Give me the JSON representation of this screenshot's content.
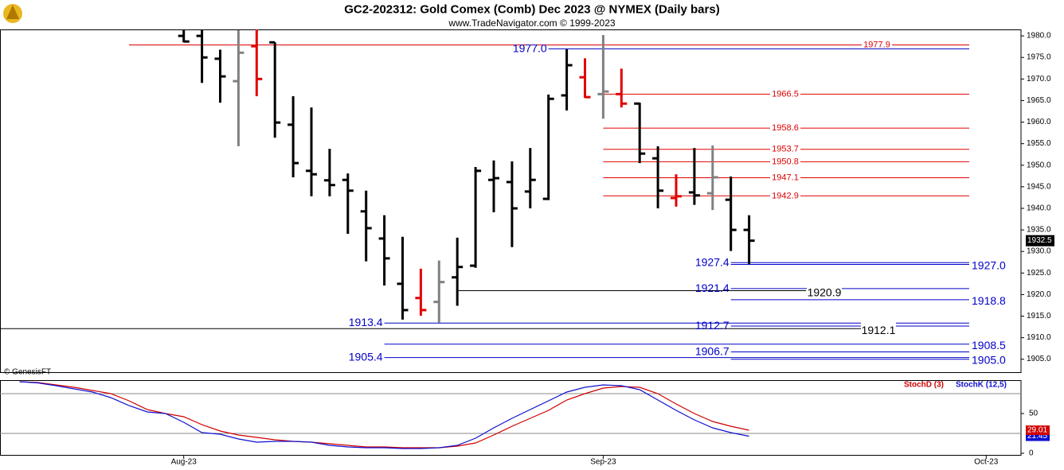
{
  "chart_data": [
    {
      "type": "ohlc",
      "title": "GC2-202312:  Gold Comex (Comb) Dec 2023 @ NYMEX  (Daily bars)",
      "subtitle": "www.TradeNavigator.com © 1999-2023",
      "watermark": "© GenesisFT",
      "open": [
        null,
        null,
        null,
        null,
        null,
        null,
        null,
        null,
        null,
        1980,
        1980,
        1974.7,
        1969.5,
        1977.6,
        1978.5,
        1959.4,
        1948.7,
        1946.5,
        1946.6,
        1939.3,
        1933.0,
        1922.5,
        1919.2,
        1918.3,
        1924.0,
        1926.7,
        1946.6,
        1946.1,
        1943.9,
        1942.2,
        1966.2,
        1970.4,
        1966.5,
        1966.5,
        1964.3,
        1951.6,
        1942.4,
        1943.7,
        1943.5,
        1942.0,
        1935.0,
        null,
        null,
        null,
        null,
        null,
        null,
        null,
        null,
        null,
        null,
        null,
        null,
        null,
        null
      ],
      "high": [
        null,
        null,
        null,
        null,
        null,
        null,
        null,
        null,
        null,
        1983,
        1983,
        1976.8,
        1981.3,
        1982,
        1978.5,
        1966.0,
        1963.4,
        1953.8,
        1948.1,
        1944.1,
        1938.4,
        1933.4,
        1926.0,
        1927.9,
        1933.2,
        1949.6,
        1951.1,
        1950.9,
        1954.0,
        1966.4,
        1976.9,
        1974.8,
        1980.2,
        1972.4,
        1964.5,
        1954.4,
        1947.9,
        1954.0,
        1954.6,
        1947.4,
        1938.4,
        null,
        null,
        null,
        null,
        null,
        null,
        null,
        null,
        null,
        null,
        null,
        null,
        null,
        null
      ],
      "low": [
        null,
        null,
        null,
        null,
        null,
        null,
        null,
        null,
        null,
        1978.5,
        1969.1,
        1964.5,
        1954.4,
        1966.0,
        1956.4,
        1947.2,
        1942.8,
        1942.8,
        1934.1,
        1927.7,
        1922.1,
        1914.2,
        1915.1,
        1913.5,
        1917.4,
        1926.2,
        1939.1,
        1931.0,
        1940.0,
        1941.9,
        1962.7,
        1965.6,
        1960.8,
        1963.4,
        1950.5,
        1940.0,
        1940.4,
        1940.8,
        1939.6,
        1930.1,
        1927.1,
        null,
        null,
        null,
        null,
        null,
        null,
        null,
        null,
        null,
        null,
        null,
        null,
        null,
        null
      ],
      "close": [
        null,
        null,
        null,
        null,
        null,
        null,
        null,
        null,
        null,
        1978.7,
        1975.0,
        1970.6,
        1976.1,
        1970.0,
        1959.9,
        1950.5,
        1947.9,
        1945.4,
        1944.1,
        1935.4,
        1928.4,
        1916.4,
        1916.4,
        1922.9,
        1926.4,
        1948.7,
        1947.0,
        1940.0,
        1946.6,
        1965.4,
        1973.2,
        1965.8,
        1967.1,
        1964.3,
        1952.7,
        1944.1,
        1942.8,
        1943.0,
        1947.2,
        1935.0,
        1932.5,
        null,
        null,
        null,
        null,
        null,
        null,
        null,
        null,
        null,
        null,
        null,
        null,
        null,
        null
      ],
      "bar_colors": [
        null,
        null,
        null,
        null,
        null,
        null,
        null,
        null,
        null,
        "#000000",
        "#000000",
        "#000000",
        "#808080",
        "#e00000",
        "#000000",
        "#000000",
        "#000000",
        "#000000",
        "#000000",
        "#000000",
        "#000000",
        "#000000",
        "#e00000",
        "#808080",
        "#000000",
        "#000000",
        "#000000",
        "#000000",
        "#000000",
        "#000000",
        "#000000",
        "#e00000",
        "#808080",
        "#e00000",
        "#000000",
        "#000000",
        "#e00000",
        "#000000",
        "#808080",
        "#000000",
        "#000000",
        null,
        null,
        null,
        null,
        null,
        null,
        null,
        null,
        null,
        null,
        null,
        null,
        null,
        null
      ],
      "ylim": [
        1902,
        1981.5
      ],
      "yticks": [
        {
          "value": 1905,
          "label": "1905.0"
        },
        {
          "value": 1910,
          "label": "1910.0"
        },
        {
          "value": 1915,
          "label": "1915.0"
        },
        {
          "value": 1920,
          "label": "1920.0"
        },
        {
          "value": 1925,
          "label": "1925.0"
        },
        {
          "value": 1930,
          "label": "1930.0"
        },
        {
          "value": 1935,
          "label": "1935.0"
        },
        {
          "value": 1940,
          "label": "1940.0"
        },
        {
          "value": 1945,
          "label": "1945.0"
        },
        {
          "value": 1950,
          "label": "1950.0"
        },
        {
          "value": 1955,
          "label": "1955.0"
        },
        {
          "value": 1960,
          "label": "1960.0"
        },
        {
          "value": 1965,
          "label": "1965.0"
        },
        {
          "value": 1970,
          "label": "1970.0"
        },
        {
          "value": 1975,
          "label": "1975.0"
        },
        {
          "value": 1980,
          "label": "1980.0"
        }
      ],
      "levels": [
        {
          "value": 1977.9,
          "label": "1977.9",
          "color": "#e00000",
          "start_index": 6,
          "label_side": "inline"
        },
        {
          "value": 1977,
          "label": "1977.0",
          "color": "#0000c8",
          "start_index": 29,
          "label_side": "left"
        },
        {
          "value": 1966.5,
          "label": "1966.5",
          "color": "#e00000",
          "start_index": 32,
          "label_side": "inline"
        },
        {
          "value": 1958.6,
          "label": "1958.6",
          "color": "#e00000",
          "start_index": 32,
          "label_side": "inline"
        },
        {
          "value": 1953.7,
          "label": "1953.7",
          "color": "#e00000",
          "start_index": 32,
          "label_side": "inline"
        },
        {
          "value": 1950.8,
          "label": "1950.8",
          "color": "#e00000",
          "start_index": 32,
          "label_side": "inline"
        },
        {
          "value": 1947.1,
          "label": "1947.1",
          "color": "#e00000",
          "start_index": 32,
          "label_side": "inline"
        },
        {
          "value": 1942.9,
          "label": "1942.9",
          "color": "#e00000",
          "start_index": 32,
          "label_side": "inline"
        },
        {
          "value": 1927.4,
          "label": "1927.4",
          "color": "#0000c8",
          "start_index": 39,
          "label_side": "left"
        },
        {
          "value": 1927,
          "label": "1927.0",
          "color": "#0000c8",
          "start_index": 39,
          "label_side": "right"
        },
        {
          "value": 1921.4,
          "label": "1921.4",
          "color": "#0000c8",
          "start_index": 39,
          "label_side": "left"
        },
        {
          "value": 1920.9,
          "label": "1920.9",
          "color": "#000000",
          "start_index": 24,
          "label_side": "inline"
        },
        {
          "value": 1918.8,
          "label": "1918.8",
          "color": "#0000c8",
          "start_index": 39,
          "label_side": "right"
        },
        {
          "value": 1913.4,
          "label": "1913.4",
          "color": "#0000c8",
          "start_index": 20,
          "label_side": "left"
        },
        {
          "value": 1912.7,
          "label": "1912.7",
          "color": "#0000c8",
          "start_index": 39,
          "label_side": "left"
        },
        {
          "value": 1912.1,
          "label": "1912.1",
          "color": "#000000",
          "label_side": "inline"
        },
        {
          "value": 1908.5,
          "label": "1908.5",
          "color": "#0000c8",
          "start_index": 20,
          "label_side": "right"
        },
        {
          "value": 1906.7,
          "label": "1906.7",
          "color": "#0000c8",
          "start_index": 39,
          "label_side": "left"
        },
        {
          "value": 1905.4,
          "label": "1905.4",
          "color": "#0000c8",
          "start_index": 20,
          "label_side": "left"
        },
        {
          "value": 1905,
          "label": "1905.0",
          "color": "#0000c8",
          "start_index": 39,
          "label_side": "right"
        }
      ]
    },
    {
      "type": "line",
      "categories": [
        null,
        null,
        null,
        null,
        null,
        null,
        null,
        null,
        null,
        "Aug-23",
        null,
        null,
        null,
        null,
        null,
        null,
        null,
        null,
        null,
        null,
        null,
        null,
        null,
        null,
        null,
        null,
        null,
        null,
        null,
        null,
        null,
        null,
        "Sep-23",
        null,
        null,
        null,
        null,
        null,
        null,
        null,
        null,
        null,
        null,
        null,
        null,
        null,
        null,
        null,
        null,
        null,
        null,
        null,
        null,
        "Oct-23",
        null
      ],
      "series": [
        {
          "name": "StochD (3)",
          "color": "#d00000",
          "values": [
            90,
            89,
            86,
            83,
            79,
            75,
            66,
            55,
            50,
            46,
            36,
            28,
            23,
            20,
            17,
            15,
            14,
            12,
            10,
            8,
            8,
            7,
            7,
            7,
            9,
            13,
            23,
            34,
            44,
            54,
            67,
            75,
            82,
            84,
            83,
            75,
            62,
            50,
            40,
            34,
            29.01,
            null,
            null,
            null,
            null,
            null,
            null,
            null,
            null,
            null,
            null,
            null,
            null,
            null,
            null
          ]
        },
        {
          "name": "StochK (12,5)",
          "color": "#1010d0",
          "values": [
            90,
            88.5,
            85,
            81,
            77,
            70,
            60,
            52,
            50,
            39,
            26,
            24,
            18,
            14,
            15,
            15,
            14,
            10,
            8,
            7,
            7,
            6,
            6,
            7,
            10,
            19,
            32,
            44,
            55,
            66,
            77,
            83,
            86,
            85,
            80,
            67,
            54,
            42,
            32,
            26,
            21.45,
            null,
            null,
            null,
            null,
            null,
            null,
            null,
            null,
            null,
            null,
            null,
            null,
            null,
            null
          ]
        }
      ],
      "ylim": [
        -2,
        92
      ],
      "yticks": [
        0,
        50
      ],
      "bands": [
        25,
        75
      ]
    }
  ]
}
